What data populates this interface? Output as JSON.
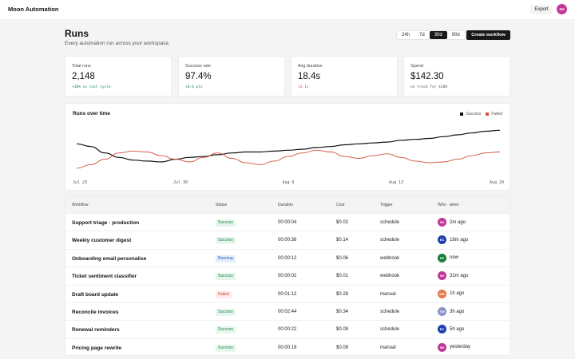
{
  "app": {
    "title": "Moon Automation"
  },
  "topbar": {
    "export_label": "Export",
    "user_initials": "SH"
  },
  "page": {
    "title": "Runs",
    "subtitle": "Every automation run across your workspace."
  },
  "ranges": [
    {
      "label": "24h",
      "active": false
    },
    {
      "label": "7d",
      "active": false
    },
    {
      "label": "30d",
      "active": true
    },
    {
      "label": "90d",
      "active": false
    }
  ],
  "create_label": "Create workflow",
  "stats": [
    {
      "label": "Total runs",
      "value": "2,148",
      "note": "+18% vs last cycle",
      "tone": "good"
    },
    {
      "label": "Success rate",
      "value": "97.4%",
      "note": "+0.6 pts",
      "tone": "good"
    },
    {
      "label": "Avg duration",
      "value": "18.4s",
      "note": "+2.1s",
      "tone": "bad"
    },
    {
      "label": "Spend",
      "value": "$142.30",
      "note": "on track for $180",
      "tone": "neutral"
    }
  ],
  "colors": {
    "accent_dark": "#18181b",
    "success_line": "#111111",
    "failed_line": "#d4503a",
    "note_good": "#17864a",
    "note_bad": "#c7462b"
  },
  "chart_data": {
    "type": "line",
    "title": "Runs over time",
    "x_labels": [
      "Jul 23",
      "Jul 30",
      "Aug 6",
      "Aug 13",
      "Aug 20"
    ],
    "grid": false,
    "legend": "top-right",
    "series": [
      {
        "name": "Success",
        "values": [
          65,
          62,
          55,
          50,
          47,
          46,
          45,
          48,
          50,
          51,
          53,
          55,
          56,
          56,
          57,
          58,
          59,
          61,
          62,
          64,
          65,
          66,
          67,
          69,
          70,
          71,
          73,
          75,
          77,
          79,
          80
        ]
      },
      {
        "name": "Failed",
        "values": [
          38,
          42,
          48,
          55,
          57,
          56,
          52,
          48,
          45,
          50,
          55,
          49,
          44,
          42,
          46,
          51,
          55,
          58,
          56,
          51,
          49,
          52,
          54,
          50,
          46,
          44,
          45,
          48,
          52,
          55,
          56
        ]
      }
    ]
  },
  "table": {
    "columns": [
      "Workflow",
      "Status",
      "Duration",
      "Cost",
      "Trigger",
      "Who · when"
    ],
    "rows": [
      {
        "workflow": "Support triage · production",
        "status": "Success",
        "duration": "00:00:04",
        "cost": "$0.02",
        "trigger": "schedule",
        "who": "SH",
        "who_color": "#c0379a",
        "when": "2m ago"
      },
      {
        "workflow": "Weekly customer digest",
        "status": "Success",
        "duration": "00:00:38",
        "cost": "$0.14",
        "trigger": "schedule",
        "who": "EC",
        "who_color": "#1e40af",
        "when": "18m ago"
      },
      {
        "workflow": "Onboarding email personalise",
        "status": "Running",
        "duration": "00:00:12",
        "cost": "$0.06",
        "trigger": "webhook",
        "who": "PE",
        "who_color": "#16803c",
        "when": "now"
      },
      {
        "workflow": "Ticket sentiment classifier",
        "status": "Success",
        "duration": "00:00:02",
        "cost": "$0.01",
        "trigger": "webhook",
        "who": "SH",
        "who_color": "#c0379a",
        "when": "32m ago"
      },
      {
        "workflow": "Draft board update",
        "status": "Failed",
        "duration": "00:01:12",
        "cost": "$0.28",
        "trigger": "manual",
        "who": "MB",
        "who_color": "#e8774a",
        "when": "1h ago"
      },
      {
        "workflow": "Reconcile invoices",
        "status": "Success",
        "duration": "00:02:44",
        "cost": "$0.34",
        "trigger": "schedule",
        "who": "TW",
        "who_color": "#8b92c9",
        "when": "3h ago"
      },
      {
        "workflow": "Renewal reminders",
        "status": "Success",
        "duration": "00:00:22",
        "cost": "$0.09",
        "trigger": "schedule",
        "who": "EC",
        "who_color": "#1e40af",
        "when": "5h ago"
      },
      {
        "workflow": "Pricing page rewrite",
        "status": "Success",
        "duration": "00:00:18",
        "cost": "$0.08",
        "trigger": "manual",
        "who": "SH",
        "who_color": "#c0379a",
        "when": "yesterday"
      }
    ]
  }
}
